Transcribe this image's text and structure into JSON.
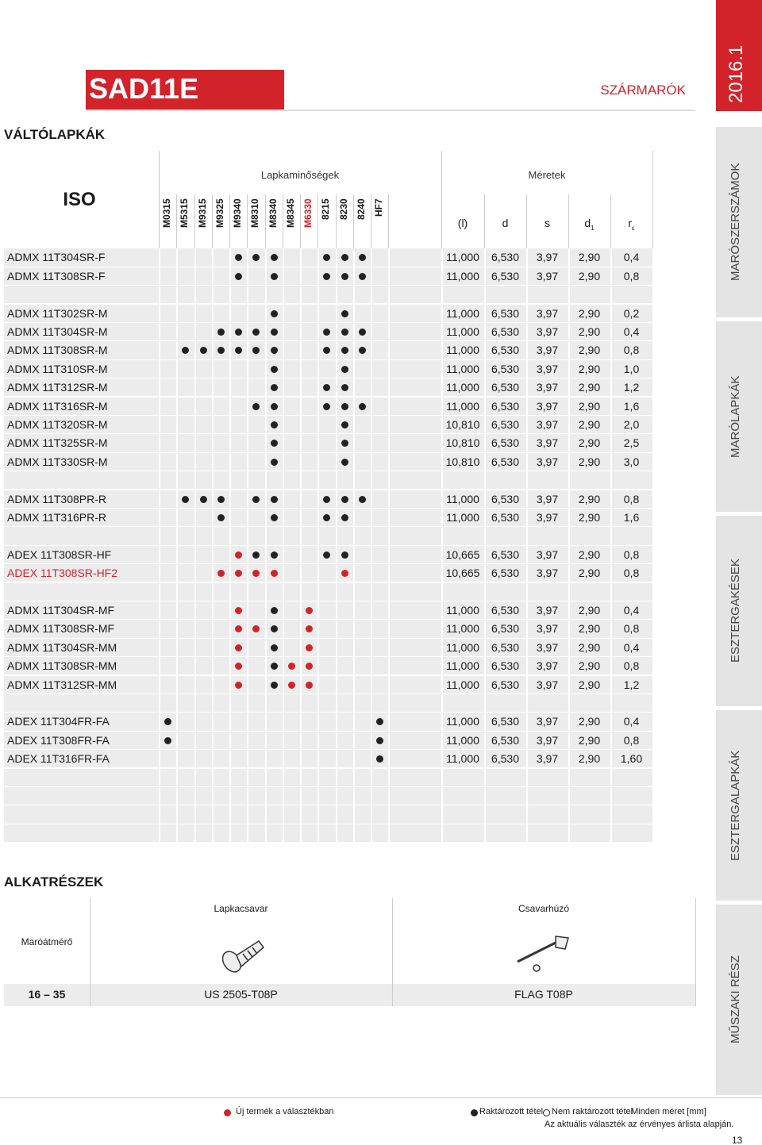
{
  "header": {
    "title": "SAD11E",
    "category": "SZÁRMARÓK",
    "year": "2016.1"
  },
  "section": "VÁLTÓLAPKÁK",
  "sidebar": [
    "MARÓSZERSZÁMOK",
    "MARÓLAPKÁK",
    "ESZTERGAKÉSEK",
    "ESZTERGALAPKÁK",
    "MŰSZAKI RÉSZ"
  ],
  "table": {
    "iso": "ISO",
    "grades_title": "Lapkaminőségek",
    "dims_title": "Méretek",
    "grades": [
      {
        "name": "M0315"
      },
      {
        "name": "M5315"
      },
      {
        "name": "M9315"
      },
      {
        "name": "M9325"
      },
      {
        "name": "M9340"
      },
      {
        "name": "M8310"
      },
      {
        "name": "M8340"
      },
      {
        "name": "M8345"
      },
      {
        "name": "M6330",
        "color": "#d2232a"
      },
      {
        "name": "8215"
      },
      {
        "name": "8230"
      },
      {
        "name": "8240"
      },
      {
        "name": "HF7"
      }
    ],
    "dims": [
      {
        "text": "(l)"
      },
      {
        "text": "d"
      },
      {
        "text": "s"
      },
      {
        "text": "d",
        "sub": "1"
      },
      {
        "text": "r",
        "sub": "ε"
      }
    ],
    "groups": [
      [
        {
          "name": "ADMX 11T304SR-F",
          "grades": [
            null,
            null,
            null,
            null,
            "#222",
            "#222",
            "#222",
            null,
            null,
            "#222",
            "#222",
            "#222",
            null
          ],
          "dims": [
            "11,000",
            "6,530",
            "3,97",
            "2,90",
            "0,4"
          ]
        },
        {
          "name": "ADMX 11T308SR-F",
          "grades": [
            null,
            null,
            null,
            null,
            "#222",
            null,
            "#222",
            null,
            null,
            "#222",
            "#222",
            "#222",
            null
          ],
          "dims": [
            "11,000",
            "6,530",
            "3,97",
            "2,90",
            "0,8"
          ]
        }
      ],
      [
        {
          "name": "ADMX 11T302SR-M",
          "grades": [
            null,
            null,
            null,
            null,
            null,
            null,
            "#222",
            null,
            null,
            null,
            "#222",
            null,
            null
          ],
          "dims": [
            "11,000",
            "6,530",
            "3,97",
            "2,90",
            "0,2"
          ]
        },
        {
          "name": "ADMX 11T304SR-M",
          "grades": [
            null,
            null,
            null,
            "#222",
            "#222",
            "#222",
            "#222",
            null,
            null,
            "#222",
            "#222",
            "#222",
            null
          ],
          "dims": [
            "11,000",
            "6,530",
            "3,97",
            "2,90",
            "0,4"
          ]
        },
        {
          "name": "ADMX 11T308SR-M",
          "grades": [
            null,
            "#222",
            "#222",
            "#222",
            "#222",
            "#222",
            "#222",
            null,
            null,
            "#222",
            "#222",
            "#222",
            null
          ],
          "dims": [
            "11,000",
            "6,530",
            "3,97",
            "2,90",
            "0,8"
          ]
        },
        {
          "name": "ADMX 11T310SR-M",
          "grades": [
            null,
            null,
            null,
            null,
            null,
            null,
            "#222",
            null,
            null,
            null,
            "#222",
            null,
            null
          ],
          "dims": [
            "11,000",
            "6,530",
            "3,97",
            "2,90",
            "1,0"
          ]
        },
        {
          "name": "ADMX 11T312SR-M",
          "grades": [
            null,
            null,
            null,
            null,
            null,
            null,
            "#222",
            null,
            null,
            "#222",
            "#222",
            null,
            null
          ],
          "dims": [
            "11,000",
            "6,530",
            "3,97",
            "2,90",
            "1,2"
          ]
        },
        {
          "name": "ADMX 11T316SR-M",
          "grades": [
            null,
            null,
            null,
            null,
            null,
            "#222",
            "#222",
            null,
            null,
            "#222",
            "#222",
            "#222",
            null
          ],
          "dims": [
            "11,000",
            "6,530",
            "3,97",
            "2,90",
            "1,6"
          ]
        },
        {
          "name": "ADMX 11T320SR-M",
          "grades": [
            null,
            null,
            null,
            null,
            null,
            null,
            "#222",
            null,
            null,
            null,
            "#222",
            null,
            null
          ],
          "dims": [
            "10,810",
            "6,530",
            "3,97",
            "2,90",
            "2,0"
          ]
        },
        {
          "name": "ADMX 11T325SR-M",
          "grades": [
            null,
            null,
            null,
            null,
            null,
            null,
            "#222",
            null,
            null,
            null,
            "#222",
            null,
            null
          ],
          "dims": [
            "10,810",
            "6,530",
            "3,97",
            "2,90",
            "2,5"
          ]
        },
        {
          "name": "ADMX 11T330SR-M",
          "grades": [
            null,
            null,
            null,
            null,
            null,
            null,
            "#222",
            null,
            null,
            null,
            "#222",
            null,
            null
          ],
          "dims": [
            "10,810",
            "6,530",
            "3,97",
            "2,90",
            "3,0"
          ]
        }
      ],
      [
        {
          "name": "ADMX 11T308PR-R",
          "grades": [
            null,
            "#222",
            "#222",
            "#222",
            null,
            "#222",
            "#222",
            null,
            null,
            "#222",
            "#222",
            "#222",
            null
          ],
          "dims": [
            "11,000",
            "6,530",
            "3,97",
            "2,90",
            "0,8"
          ]
        },
        {
          "name": "ADMX 11T316PR-R",
          "grades": [
            null,
            null,
            null,
            "#222",
            null,
            null,
            "#222",
            null,
            null,
            "#222",
            "#222",
            null,
            null
          ],
          "dims": [
            "11,000",
            "6,530",
            "3,97",
            "2,90",
            "1,6"
          ]
        }
      ],
      [
        {
          "name": "ADEX 11T308SR-HF",
          "grades": [
            null,
            null,
            null,
            null,
            "#d2232a",
            "#222",
            "#222",
            null,
            null,
            "#222",
            "#222",
            null,
            null
          ],
          "dims": [
            "10,665",
            "6,530",
            "3,97",
            "2,90",
            "0,8"
          ]
        },
        {
          "name": "ADEX 11T308SR-HF2",
          "color": "#d2232a",
          "grades": [
            null,
            null,
            null,
            "#d2232a",
            "#d2232a",
            "#d2232a",
            "#d2232a",
            null,
            null,
            null,
            "#d2232a",
            null,
            null
          ],
          "dims": [
            "10,665",
            "6,530",
            "3,97",
            "2,90",
            "0,8"
          ]
        }
      ],
      [
        {
          "name": "ADMX 11T304SR-MF",
          "grades": [
            null,
            null,
            null,
            null,
            "#d2232a",
            null,
            "#222",
            null,
            "#d2232a",
            null,
            null,
            null,
            null
          ],
          "dims": [
            "11,000",
            "6,530",
            "3,97",
            "2,90",
            "0,4"
          ]
        },
        {
          "name": "ADMX 11T308SR-MF",
          "grades": [
            null,
            null,
            null,
            null,
            "#d2232a",
            "#d2232a",
            "#222",
            null,
            "#d2232a",
            null,
            null,
            null,
            null
          ],
          "dims": [
            "11,000",
            "6,530",
            "3,97",
            "2,90",
            "0,8"
          ]
        },
        {
          "name": "ADMX 11T304SR-MM",
          "grades": [
            null,
            null,
            null,
            null,
            "#d2232a",
            null,
            "#222",
            null,
            "#d2232a",
            null,
            null,
            null,
            null
          ],
          "dims": [
            "11,000",
            "6,530",
            "3,97",
            "2,90",
            "0,4"
          ]
        },
        {
          "name": "ADMX 11T308SR-MM",
          "grades": [
            null,
            null,
            null,
            null,
            "#d2232a",
            null,
            "#222",
            "#d2232a",
            "#d2232a",
            null,
            null,
            null,
            null
          ],
          "dims": [
            "11,000",
            "6,530",
            "3,97",
            "2,90",
            "0,8"
          ]
        },
        {
          "name": "ADMX 11T312SR-MM",
          "grades": [
            null,
            null,
            null,
            null,
            "#d2232a",
            null,
            "#222",
            "#d2232a",
            "#d2232a",
            null,
            null,
            null,
            null
          ],
          "dims": [
            "11,000",
            "6,530",
            "3,97",
            "2,90",
            "1,2"
          ]
        }
      ],
      [
        {
          "name": "ADEX 11T304FR-FA",
          "grades": [
            "#222",
            null,
            null,
            null,
            null,
            null,
            null,
            null,
            null,
            null,
            null,
            null,
            "#222"
          ],
          "dims": [
            "11,000",
            "6,530",
            "3,97",
            "2,90",
            "0,4"
          ]
        },
        {
          "name": "ADEX 11T308FR-FA",
          "grades": [
            "#222",
            null,
            null,
            null,
            null,
            null,
            null,
            null,
            null,
            null,
            null,
            null,
            "#222"
          ],
          "dims": [
            "11,000",
            "6,530",
            "3,97",
            "2,90",
            "0,8"
          ]
        },
        {
          "name": "ADEX 11T316FR-FA",
          "grades": [
            null,
            null,
            null,
            null,
            null,
            null,
            null,
            null,
            null,
            null,
            null,
            null,
            "#222"
          ],
          "dims": [
            "11,000",
            "6,530",
            "3,97",
            "2,90",
            "1,60"
          ]
        }
      ]
    ]
  },
  "parts": {
    "title": "ALKATRÉSZEK",
    "diameter_label": "Maróátmérő",
    "diameter": "16 – 35",
    "screw_label": "Lapkacsavar",
    "screw": "US 2505-T08P",
    "driver_label": "Csavarhúzó",
    "driver": "FLAG T08P"
  },
  "legend": [
    {
      "label": "Új termék a választékban",
      "color": "#d2232a"
    },
    {
      "label": "Raktározott tétel",
      "color": "#222"
    },
    {
      "label": "Nem raktározott tétel",
      "color": null
    }
  ],
  "footer": {
    "note": "Minden méret [mm]",
    "availability": "Az aktuális választék az érvényes árlista alapján.",
    "page": "13"
  }
}
